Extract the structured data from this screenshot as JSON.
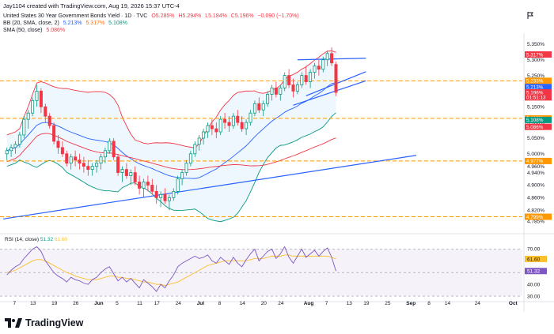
{
  "header": {
    "created": "Jay1104 created with TradingView.com, Aug 19, 2026 15:37 UTC-4",
    "title": "United States 30 Year Government Bonds Yield · 1D · TVC",
    "ohlc": {
      "o": "O5.285%",
      "h": "H5.294%",
      "l": "L5.184%",
      "c": "C5.196%",
      "chg": "−0.090 (−1.70%)"
    },
    "bb_label": "BB (20, SMA, close, 2)",
    "bb_vals": [
      "5.213%",
      "5.317%",
      "5.108%"
    ],
    "sma_label": "SMA (50, close)",
    "sma_val": "5.086%",
    "rsi_label": "RSI (14, close)",
    "rsi_vals": [
      "51.32",
      "61.60"
    ],
    "flag_icon": "flag-icon",
    "brand": "TradingView"
  },
  "colors": {
    "up": "#089981",
    "down": "#f23645",
    "bb_upper": "#f23645",
    "bb_lower": "#089981",
    "bb_basis": "#2962ff",
    "sma": "#f23645",
    "trend": "#2962ff",
    "hline": "#ff9800",
    "rsi": "#7e57c2",
    "rsi_ma": "#fbc02d",
    "rsi_band": "#7e57c2"
  },
  "chart_data": [
    {
      "type": "candlestick",
      "title": "United States 30 Year Government Bonds Yield",
      "ylim": [
        4.76,
        5.385
      ],
      "y_ticks": [
        "5.350%",
        "5.300%",
        "5.250%",
        "5.200%",
        "5.150%",
        "5.100%",
        "5.050%",
        "5.000%",
        "4.960%",
        "4.940%",
        "4.900%",
        "4.860%",
        "4.820%",
        "4.785%"
      ],
      "y_tick_values": [
        5.35,
        5.3,
        5.25,
        5.2,
        5.15,
        5.1,
        5.05,
        5.0,
        4.96,
        4.94,
        4.9,
        4.86,
        4.82,
        4.785
      ],
      "x_ticks": [
        "7",
        "13",
        "19",
        "26",
        "Jun",
        "5",
        "11",
        "17",
        "24",
        "Jul",
        "8",
        "14",
        "20",
        "24",
        "Aug",
        "7",
        "13",
        "19",
        "25",
        "Sep",
        "8",
        "14",
        "24",
        "Oct"
      ],
      "x_tick_index": [
        2,
        6,
        11,
        16,
        21,
        26,
        31,
        35,
        40,
        45,
        50,
        55,
        60,
        64,
        70,
        75,
        80,
        84,
        89,
        94,
        99,
        103,
        110,
        118
      ],
      "candles": [
        [
          5.0,
          5.02,
          4.98,
          5.01
        ],
        [
          5.01,
          5.03,
          4.99,
          5.02
        ],
        [
          5.02,
          5.04,
          5.0,
          5.03
        ],
        [
          5.03,
          5.07,
          5.02,
          5.06
        ],
        [
          5.06,
          5.12,
          5.05,
          5.11
        ],
        [
          5.11,
          5.14,
          5.08,
          5.13
        ],
        [
          5.13,
          5.18,
          5.12,
          5.17
        ],
        [
          5.17,
          5.22,
          5.15,
          5.2
        ],
        [
          5.2,
          5.21,
          5.13,
          5.15
        ],
        [
          5.15,
          5.16,
          5.1,
          5.12
        ],
        [
          5.12,
          5.13,
          5.08,
          5.09
        ],
        [
          5.09,
          5.1,
          5.03,
          5.04
        ],
        [
          5.04,
          5.06,
          5.0,
          5.02
        ],
        [
          5.02,
          5.04,
          4.99,
          5.0
        ],
        [
          5.0,
          5.01,
          4.96,
          4.97
        ],
        [
          4.97,
          5.0,
          4.95,
          4.99
        ],
        [
          4.99,
          5.01,
          4.96,
          4.98
        ],
        [
          4.98,
          5.0,
          4.95,
          4.97
        ],
        [
          4.97,
          4.99,
          4.94,
          4.96
        ],
        [
          4.96,
          4.98,
          4.93,
          4.95
        ],
        [
          4.95,
          4.97,
          4.93,
          4.96
        ],
        [
          4.96,
          4.98,
          4.94,
          4.97
        ],
        [
          4.97,
          5.0,
          4.95,
          4.99
        ],
        [
          4.99,
          5.02,
          4.97,
          5.01
        ],
        [
          5.01,
          5.05,
          5.0,
          5.04
        ],
        [
          5.04,
          5.05,
          4.98,
          4.99
        ],
        [
          4.99,
          5.0,
          4.93,
          4.94
        ],
        [
          4.94,
          4.96,
          4.91,
          4.95
        ],
        [
          4.95,
          4.97,
          4.92,
          4.93
        ],
        [
          4.93,
          4.95,
          4.9,
          4.94
        ],
        [
          4.94,
          4.96,
          4.9,
          4.91
        ],
        [
          4.91,
          4.93,
          4.87,
          4.89
        ],
        [
          4.89,
          4.92,
          4.86,
          4.91
        ],
        [
          4.91,
          4.93,
          4.88,
          4.9
        ],
        [
          4.9,
          4.92,
          4.87,
          4.88
        ],
        [
          4.88,
          4.9,
          4.84,
          4.86
        ],
        [
          4.86,
          4.88,
          4.83,
          4.87
        ],
        [
          4.87,
          4.89,
          4.84,
          4.85
        ],
        [
          4.85,
          4.87,
          4.82,
          4.86
        ],
        [
          4.86,
          4.89,
          4.85,
          4.88
        ],
        [
          4.88,
          4.93,
          4.87,
          4.92
        ],
        [
          4.92,
          4.95,
          4.9,
          4.94
        ],
        [
          4.94,
          4.98,
          4.93,
          4.97
        ],
        [
          4.97,
          5.01,
          4.96,
          5.0
        ],
        [
          5.0,
          5.04,
          4.99,
          5.03
        ],
        [
          5.03,
          5.06,
          5.01,
          5.05
        ],
        [
          5.05,
          5.08,
          5.03,
          5.07
        ],
        [
          5.07,
          5.1,
          5.05,
          5.09
        ],
        [
          5.09,
          5.11,
          5.06,
          5.08
        ],
        [
          5.08,
          5.1,
          5.05,
          5.07
        ],
        [
          5.07,
          5.12,
          5.06,
          5.11
        ],
        [
          5.11,
          5.13,
          5.08,
          5.1
        ],
        [
          5.1,
          5.12,
          5.07,
          5.09
        ],
        [
          5.09,
          5.13,
          5.08,
          5.12
        ],
        [
          5.12,
          5.14,
          5.09,
          5.1
        ],
        [
          5.1,
          5.12,
          5.07,
          5.08
        ],
        [
          5.08,
          5.11,
          5.06,
          5.1
        ],
        [
          5.1,
          5.14,
          5.09,
          5.13
        ],
        [
          5.13,
          5.17,
          5.12,
          5.16
        ],
        [
          5.16,
          5.18,
          5.13,
          5.14
        ],
        [
          5.14,
          5.17,
          5.12,
          5.16
        ],
        [
          5.16,
          5.2,
          5.15,
          5.19
        ],
        [
          5.19,
          5.22,
          5.17,
          5.21
        ],
        [
          5.21,
          5.23,
          5.18,
          5.19
        ],
        [
          5.19,
          5.22,
          5.17,
          5.21
        ],
        [
          5.21,
          5.26,
          5.2,
          5.25
        ],
        [
          5.25,
          5.27,
          5.21,
          5.22
        ],
        [
          5.22,
          5.24,
          5.18,
          5.2
        ],
        [
          5.2,
          5.23,
          5.19,
          5.22
        ],
        [
          5.22,
          5.26,
          5.21,
          5.25
        ],
        [
          5.25,
          5.28,
          5.22,
          5.23
        ],
        [
          5.23,
          5.27,
          5.21,
          5.26
        ],
        [
          5.26,
          5.29,
          5.24,
          5.28
        ],
        [
          5.28,
          5.3,
          5.25,
          5.27
        ],
        [
          5.27,
          5.31,
          5.26,
          5.3
        ],
        [
          5.3,
          5.33,
          5.28,
          5.32
        ],
        [
          5.32,
          5.34,
          5.28,
          5.29
        ],
        [
          5.285,
          5.294,
          5.184,
          5.196
        ]
      ]
    },
    {
      "type": "line",
      "title": "RSI (14, close)",
      "ylim": [
        28,
        75
      ],
      "y_ticks": [
        "70.00",
        "61.60",
        "51.32",
        "40.00",
        "30.00"
      ],
      "y_tick_values": [
        70,
        61.6,
        51.32,
        40,
        30
      ],
      "series": [
        {
          "name": "RSI",
          "values": [
            48,
            52,
            55,
            57,
            62,
            66,
            70,
            72,
            68,
            60,
            55,
            50,
            47,
            45,
            42,
            46,
            44,
            43,
            41,
            40,
            44,
            46,
            50,
            53,
            55,
            49,
            43,
            46,
            42,
            45,
            41,
            37,
            44,
            41,
            38,
            34,
            40,
            37,
            43,
            48,
            55,
            58,
            60,
            62,
            64,
            62,
            63,
            65,
            60,
            58,
            63,
            60,
            57,
            63,
            58,
            55,
            61,
            66,
            70,
            60,
            64,
            68,
            70,
            62,
            66,
            72,
            63,
            58,
            64,
            70,
            63,
            66,
            69,
            64,
            68,
            71,
            63,
            51.32
          ]
        },
        {
          "name": "RSI-based MA",
          "values": [
            50,
            51,
            52,
            54,
            56,
            58,
            60,
            61,
            61,
            60,
            58,
            56,
            54,
            52,
            50,
            49,
            47,
            46,
            45,
            44,
            44,
            44,
            45,
            46,
            47,
            47,
            46,
            46,
            45,
            45,
            44,
            43,
            42,
            42,
            41,
            40,
            40,
            39,
            40,
            41,
            42,
            44,
            46,
            48,
            50,
            52,
            54,
            56,
            57,
            58,
            59,
            60,
            60,
            60,
            60,
            60,
            60,
            61,
            62,
            62,
            62,
            63,
            64,
            64,
            64,
            65,
            65,
            64,
            64,
            64,
            64,
            64,
            64,
            64,
            64,
            64,
            63,
            61.6
          ]
        }
      ]
    }
  ],
  "levels": [
    {
      "value": 5.233,
      "label": "5.233%",
      "color": "#ff9800"
    },
    {
      "value": 5.113,
      "label": "5.113%",
      "color": "#ff9800"
    },
    {
      "value": 4.977,
      "label": "4.977%",
      "color": "#ff9800"
    },
    {
      "value": 4.799,
      "label": "4.799%",
      "color": "#ff9800"
    }
  ],
  "price_tags": [
    {
      "value": 5.317,
      "label": "5.317%",
      "color": "#f23645"
    },
    {
      "value": 5.213,
      "label": "5.213%",
      "color": "#2962ff"
    },
    {
      "value": 5.196,
      "label": "5.196%",
      "color": "#f23645"
    },
    {
      "value": 5.18,
      "label": "01:51:13",
      "color": "#f23645"
    },
    {
      "value": 5.108,
      "label": "5.108%",
      "color": "#089981"
    },
    {
      "value": 5.086,
      "label": "5.086%",
      "color": "#f23645"
    }
  ]
}
